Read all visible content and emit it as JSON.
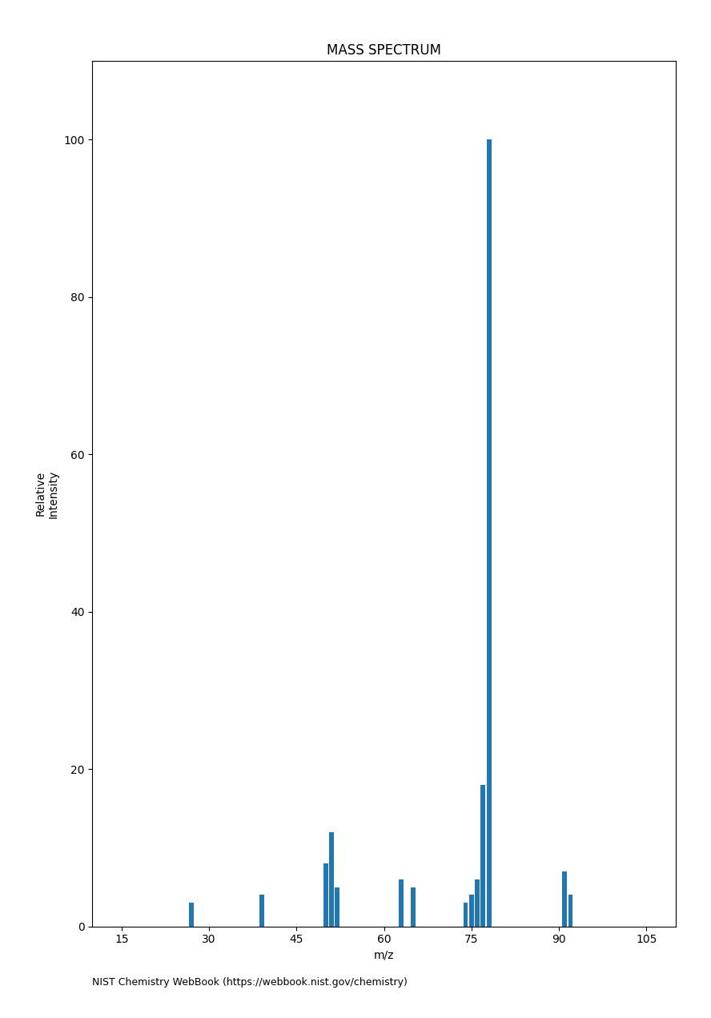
{
  "chart_data": {
    "type": "bar",
    "title": "MASS SPECTRUM",
    "x": [
      27,
      39,
      50,
      51,
      52,
      63,
      65,
      74,
      75,
      76,
      77,
      78,
      91,
      92
    ],
    "values": [
      3,
      4,
      8,
      12,
      5,
      6,
      5,
      3,
      4,
      6,
      18,
      100,
      7,
      4
    ],
    "x_label": "m/z",
    "y_label": "Relative\nIntensity",
    "xlim": [
      10,
      110
    ],
    "ylim": [
      0,
      110
    ],
    "xticks": [
      15,
      30,
      45,
      60,
      75,
      90,
      105
    ],
    "yticks": [
      0,
      20,
      40,
      60,
      80,
      100
    ],
    "annotations": [
      "NIST Chemistry WebBook (https://webbook.nist.gov/chemistry)"
    ]
  }
}
